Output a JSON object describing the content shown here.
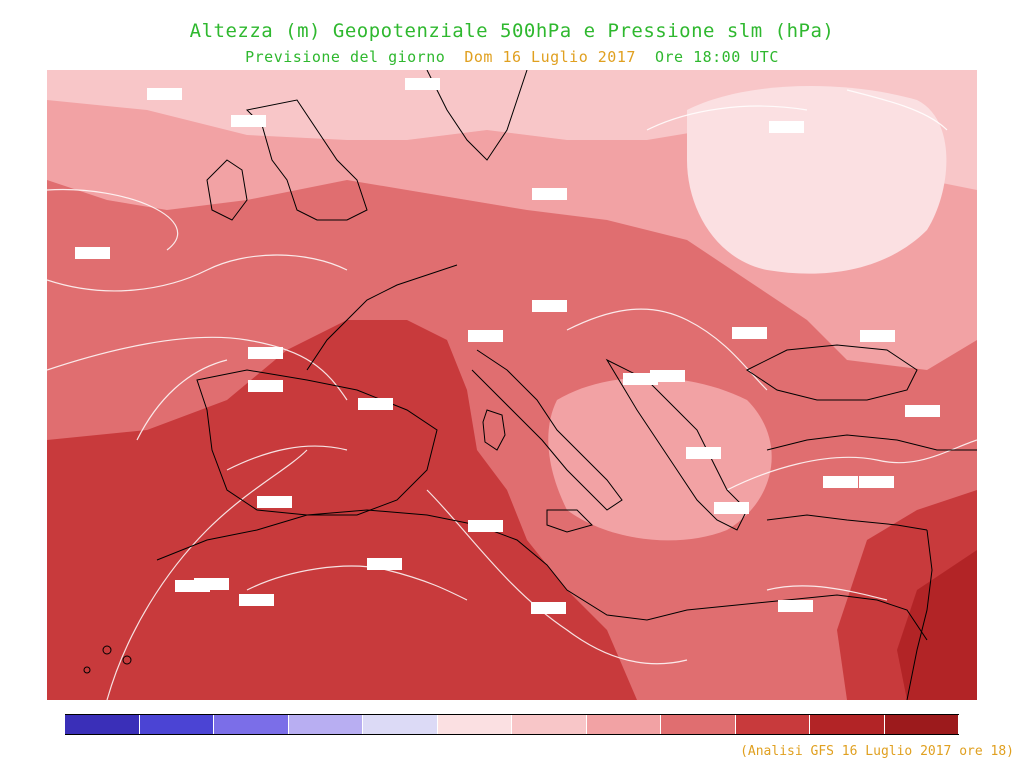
{
  "title": {
    "line1": "Altezza (m) Geopotenziale 500hPa e Pressione slm (hPa)",
    "line2_prefix": "Previsione del giorno",
    "line2_date": "Dom 16 Luglio 2017",
    "line2_suffix": "Ore 18:00 UTC"
  },
  "colors": {
    "title_green": "#2fb82f",
    "date_orange": "#e0a020",
    "palette": [
      "#3a2fb8",
      "#4b44d4",
      "#7b6ee8",
      "#b8aef2",
      "#dcdaf6",
      "#fbe0e2",
      "#f8c6c8",
      "#f2a2a4",
      "#e06e70",
      "#c83a3c",
      "#b22426",
      "#9c1a1c"
    ]
  },
  "map": {
    "region": "Europa e Mediterraneo",
    "contour_color": "white",
    "coastline_color": "black"
  },
  "source": "(Analisi GFS 16 Luglio 2017 ore 18)"
}
